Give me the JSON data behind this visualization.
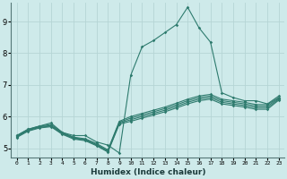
{
  "xlabel": "Humidex (Indice chaleur)",
  "bg_color": "#ceeaea",
  "line_color": "#2e7b6e",
  "grid_color": "#b5d5d5",
  "xlim": [
    -0.5,
    23.5
  ],
  "ylim": [
    4.7,
    9.6
  ],
  "xticks": [
    0,
    1,
    2,
    3,
    4,
    5,
    6,
    7,
    8,
    9,
    10,
    11,
    12,
    13,
    14,
    15,
    16,
    17,
    18,
    19,
    20,
    21,
    22,
    23
  ],
  "yticks": [
    5,
    6,
    7,
    8,
    9
  ],
  "curves": [
    [
      5.4,
      5.6,
      5.7,
      5.8,
      5.5,
      5.4,
      5.4,
      5.2,
      5.1,
      4.85,
      7.3,
      8.2,
      8.4,
      8.65,
      8.9,
      9.45,
      8.8,
      8.35,
      6.75,
      6.6,
      6.5,
      6.5,
      6.4,
      6.65
    ],
    [
      5.4,
      5.6,
      5.7,
      5.75,
      5.5,
      5.35,
      5.3,
      5.15,
      4.95,
      5.85,
      6.0,
      6.1,
      6.2,
      6.3,
      6.42,
      6.55,
      6.65,
      6.7,
      6.55,
      6.5,
      6.45,
      6.38,
      6.38,
      6.6
    ],
    [
      5.38,
      5.58,
      5.68,
      5.72,
      5.48,
      5.33,
      5.28,
      5.12,
      4.92,
      5.82,
      5.95,
      6.05,
      6.15,
      6.25,
      6.37,
      6.5,
      6.6,
      6.65,
      6.5,
      6.45,
      6.4,
      6.33,
      6.33,
      6.58
    ],
    [
      5.36,
      5.56,
      5.66,
      5.7,
      5.46,
      5.31,
      5.26,
      5.1,
      4.9,
      5.79,
      5.9,
      6.0,
      6.1,
      6.2,
      6.32,
      6.45,
      6.55,
      6.6,
      6.45,
      6.4,
      6.35,
      6.28,
      6.28,
      6.55
    ],
    [
      5.34,
      5.54,
      5.64,
      5.68,
      5.44,
      5.29,
      5.24,
      5.08,
      4.88,
      5.76,
      5.85,
      5.95,
      6.05,
      6.15,
      6.27,
      6.4,
      6.5,
      6.55,
      6.4,
      6.35,
      6.3,
      6.23,
      6.23,
      6.52
    ]
  ]
}
